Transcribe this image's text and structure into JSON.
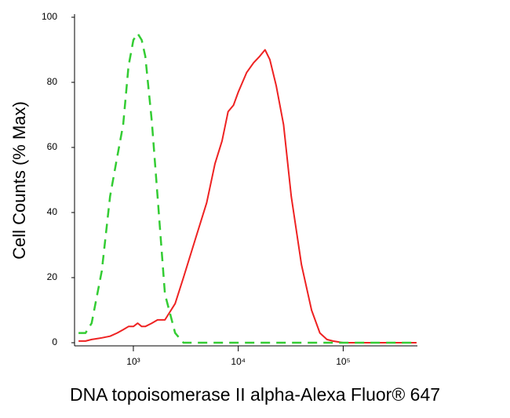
{
  "chart_data": {
    "type": "line",
    "x_label": "DNA topoisomerase II alpha-Alexa Fluor® 647",
    "y_label": "Cell Counts (% Max)",
    "xscale": "log",
    "x": [
      300,
      350,
      400,
      500,
      600,
      700,
      800,
      900,
      1000,
      1100,
      1200,
      1300,
      1500,
      1700,
      2000,
      2500,
      3000,
      4000,
      5000,
      6000,
      7000,
      8000,
      9000,
      10000,
      12000,
      14000,
      16000,
      18000,
      20000,
      23000,
      27000,
      32000,
      40000,
      50000,
      60000,
      70000,
      80000,
      100000,
      200000,
      500000
    ],
    "series": [
      {
        "color": "#ee2222",
        "dash": false,
        "values": [
          0.5,
          0.5,
          1,
          1.5,
          2,
          3,
          4,
          5,
          5,
          6,
          5,
          5,
          6,
          7,
          7,
          12,
          20,
          33,
          43,
          55,
          62,
          71,
          73,
          77,
          83,
          86,
          88,
          90,
          87,
          79,
          67,
          45,
          24,
          10,
          3,
          1,
          0.5,
          0,
          0,
          0
        ]
      },
      {
        "color": "#33cc33",
        "dash": true,
        "values": [
          3,
          3,
          6,
          22,
          45,
          57,
          67,
          85,
          93,
          95,
          93,
          88,
          68,
          45,
          15,
          3,
          0,
          0,
          0,
          0,
          0,
          0,
          0,
          0,
          0,
          0,
          0,
          0,
          0,
          0,
          0,
          0,
          0,
          0,
          0,
          0,
          0,
          0,
          0,
          0
        ]
      }
    ],
    "xlim": [
      275,
      510000
    ],
    "xticks": [
      {
        "value": 1000,
        "label": "10³"
      },
      {
        "value": 10000,
        "label": "10⁴"
      },
      {
        "value": 100000,
        "label": "10⁵"
      }
    ],
    "ylim": [
      0,
      100
    ],
    "yticks": [
      0,
      20,
      40,
      60,
      80,
      100
    ]
  }
}
